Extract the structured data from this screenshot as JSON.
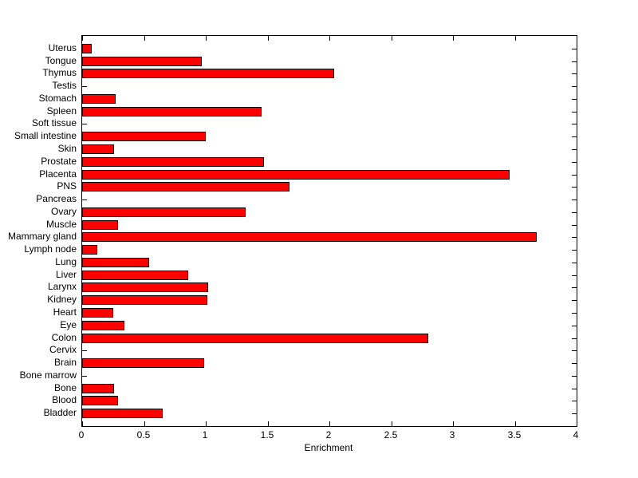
{
  "figure": {
    "background_color": "#FFFFFF"
  },
  "chart_data": {
    "type": "bar",
    "orientation": "horizontal",
    "title": "",
    "xlabel": "Enrichment",
    "ylabel": "",
    "xlim": [
      0,
      4
    ],
    "xticks": [
      0,
      0.5,
      1,
      1.5,
      2,
      2.5,
      3,
      3.5,
      4
    ],
    "xtick_labels": [
      "0",
      "0.5",
      "1",
      "1.5",
      "2",
      "2.5",
      "3",
      "3.5",
      "4"
    ],
    "category_order": "top-to-bottom",
    "categories": [
      "Uterus",
      "Tongue",
      "Thymus",
      "Testis",
      "Stomach",
      "Spleen",
      "Soft tissue",
      "Small intestine",
      "Skin",
      "Prostate",
      "Placenta",
      "PNS",
      "Pancreas",
      "Ovary",
      "Muscle",
      "Mammary gland",
      "Lymph node",
      "Lung",
      "Liver",
      "Larynx",
      "Kidney",
      "Heart",
      "Eye",
      "Colon",
      "Cervix",
      "Brain",
      "Bone marrow",
      "Bone",
      "Blood",
      "Bladder"
    ],
    "values": [
      0.08,
      0.97,
      2.04,
      0,
      0.27,
      1.45,
      0,
      1.0,
      0.26,
      1.47,
      3.46,
      1.68,
      0,
      1.32,
      0.29,
      3.68,
      0.12,
      0.54,
      0.86,
      1.02,
      1.01,
      0.25,
      0.34,
      2.8,
      0,
      0.99,
      0,
      0.26,
      0.29,
      0.65
    ],
    "bar_color": "#FF0000",
    "bar_edge_color": "#000000",
    "axis_color": "#000000",
    "grid": false,
    "legend": null
  }
}
